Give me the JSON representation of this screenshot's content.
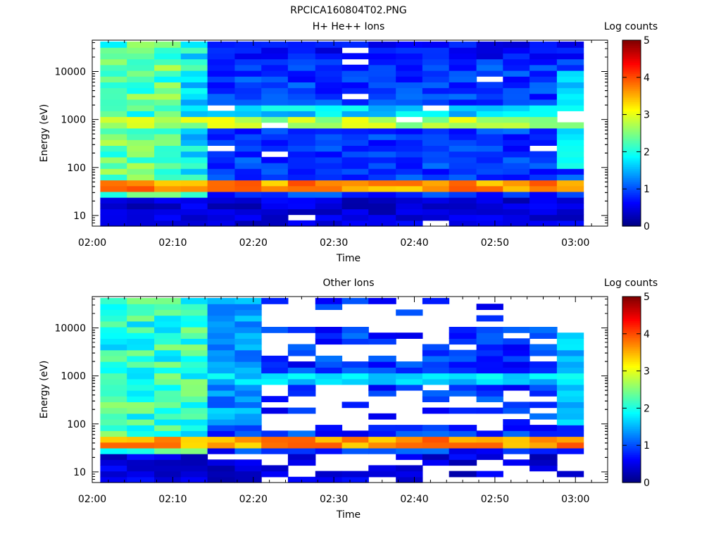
{
  "figure_title": "RPCICA160804T02.PNG",
  "colormap": [
    "#00007f",
    "#0000ff",
    "#007fff",
    "#00ffff",
    "#7fff7f",
    "#ffff00",
    "#ff7f00",
    "#ff0000",
    "#7f0000"
  ],
  "chart_data": [
    {
      "type": "heatmap",
      "title": "H+ He++ Ions",
      "xlabel": "Time",
      "ylabel": "Energy (eV)",
      "x_ticks": [
        "02:00",
        "02:10",
        "02:20",
        "02:30",
        "02:40",
        "02:50",
        "03:00"
      ],
      "x_range_minutes": [
        0,
        64
      ],
      "y_scale": "log",
      "y_range": [
        6,
        45000
      ],
      "y_ticks": [
        "10",
        "100",
        "1000",
        "10000"
      ],
      "colorbar": {
        "label": "Log counts",
        "range": [
          0,
          5
        ],
        "ticks": [
          "0",
          "1",
          "2",
          "3",
          "4",
          "5"
        ]
      },
      "time_bins_start_minutes": [
        1,
        4.3,
        7.7,
        11,
        14.3,
        17.7,
        21,
        24.3,
        27.7,
        31,
        34.3,
        37.7,
        41,
        44.3,
        47.7,
        51,
        54.3,
        57.7
      ],
      "energy_bins": 32,
      "description_of_data": "Broad 2-3 log-count band near 900 eV, bright ~4 band near 45 eV, enhanced fluxes (2.5-3) at 02:00-02:10 across 100 eV - 10 keV, low (~0.5) flux elsewhere"
    },
    {
      "type": "heatmap",
      "title": "Other Ions",
      "xlabel": "Time",
      "ylabel": "Energy (eV)",
      "x_ticks": [
        "02:00",
        "02:10",
        "02:20",
        "02:30",
        "02:40",
        "02:50",
        "03:00"
      ],
      "x_range_minutes": [
        0,
        64
      ],
      "y_scale": "log",
      "y_range": [
        6,
        45000
      ],
      "y_ticks": [
        "10",
        "100",
        "1000",
        "10000"
      ],
      "colorbar": {
        "label": "Log counts",
        "range": [
          0,
          5
        ],
        "ticks": [
          "0",
          "1",
          "2",
          "3",
          "4",
          "5"
        ]
      },
      "time_bins_start_minutes": [
        1,
        4.3,
        7.7,
        11,
        14.3,
        17.7,
        21,
        24.3,
        27.7,
        31,
        34.3,
        37.7,
        41,
        44.3,
        47.7,
        51,
        54.3,
        57.7
      ],
      "energy_bins": 32,
      "description_of_data": "Bright ~4 band near 45 eV, faint band near 900 eV, high counts 02:00-02:10, many empty (white) bins at high and low energies after 02:15"
    }
  ]
}
